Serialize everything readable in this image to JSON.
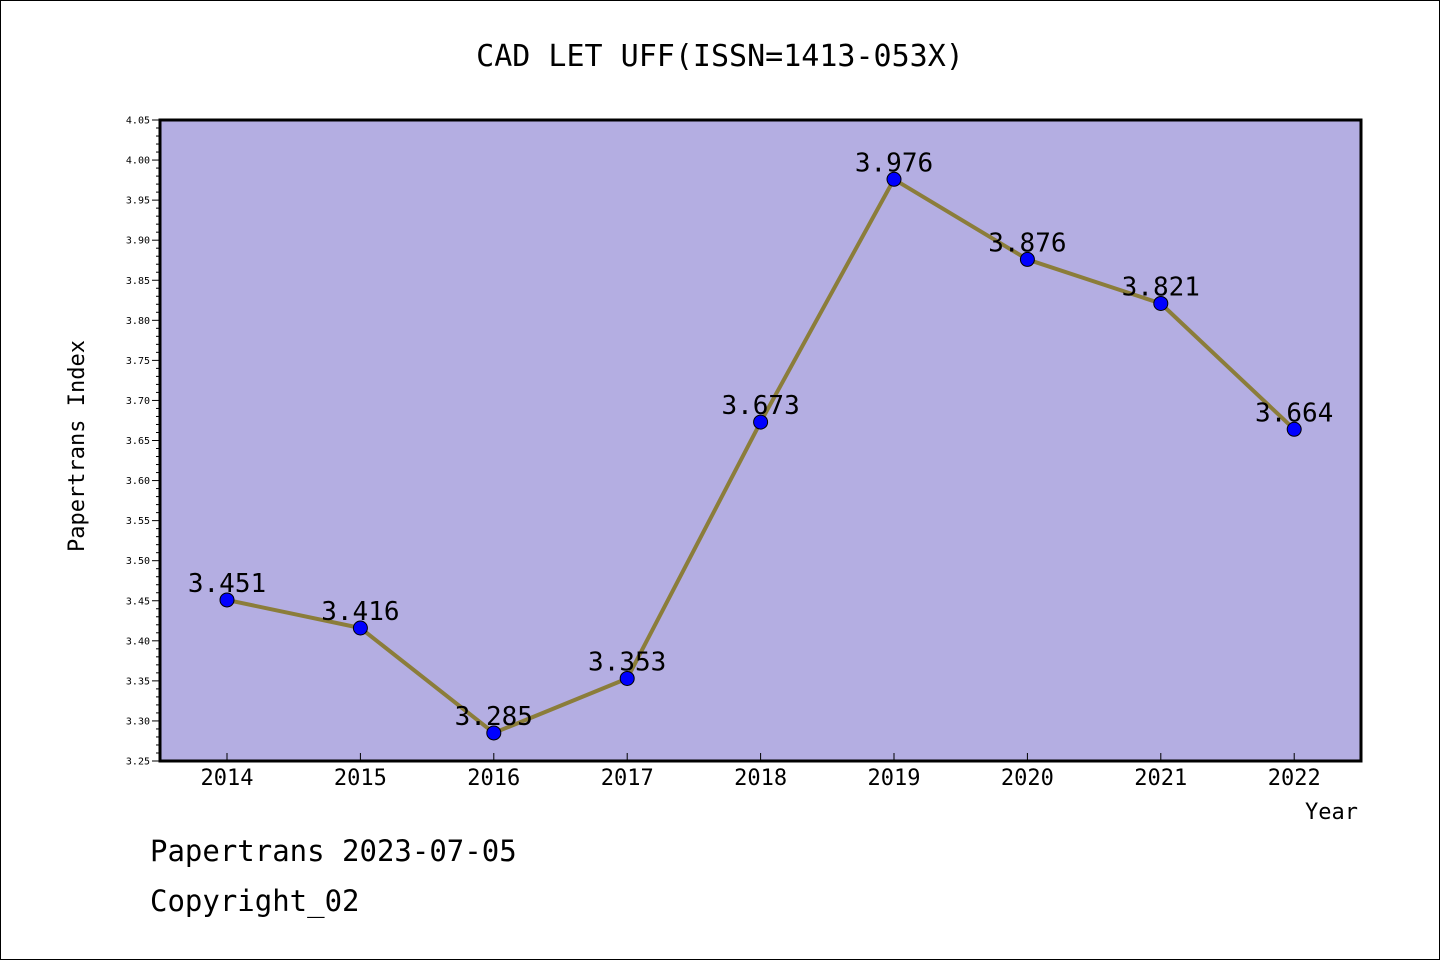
{
  "chart_data": {
    "type": "line",
    "title": "CAD LET UFF(ISSN=1413-053X)",
    "xlabel": "Year",
    "ylabel": "Papertrans Index",
    "categories": [
      "2014",
      "2015",
      "2016",
      "2017",
      "2018",
      "2019",
      "2020",
      "2021",
      "2022"
    ],
    "values": [
      3.451,
      3.416,
      3.285,
      3.353,
      3.673,
      3.976,
      3.876,
      3.821,
      3.664
    ],
    "data_labels": [
      "3.451",
      "3.416",
      "3.285",
      "3.353",
      "3.673",
      "3.976",
      "3.876",
      "3.821",
      "3.664"
    ],
    "ylim": [
      3.25,
      4.05
    ],
    "yticks": [
      "3.25",
      "3.30",
      "3.35",
      "3.40",
      "3.45",
      "3.50",
      "3.55",
      "3.60",
      "3.65",
      "3.70",
      "3.75",
      "3.80",
      "3.85",
      "3.90",
      "3.95",
      "4.00",
      "4.05"
    ],
    "grid": false,
    "colors": {
      "plot_background": "#b4aee2",
      "line": "#8b7d3a",
      "marker": "#0000ff"
    }
  },
  "footer": {
    "line1": "Papertrans 2023-07-05",
    "line2": "Copyright_02"
  }
}
